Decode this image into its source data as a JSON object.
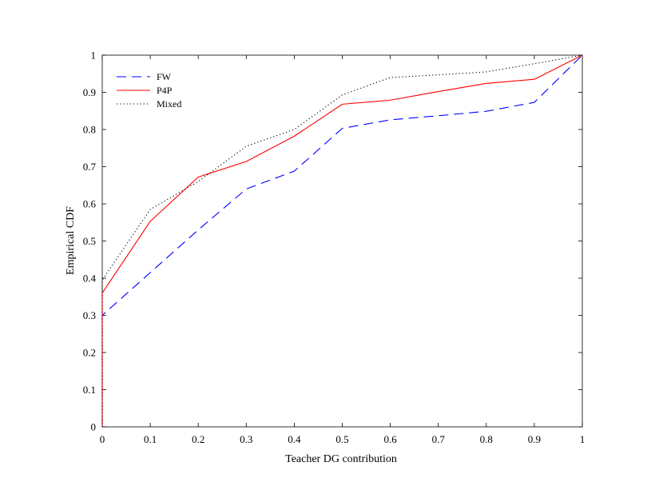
{
  "chart_data": {
    "type": "line",
    "title": "",
    "xlabel": "Teacher DG contribution",
    "ylabel": "Empirical CDF",
    "xlim": [
      0,
      1
    ],
    "ylim": [
      0,
      1
    ],
    "xticks": [
      "0",
      "0.1",
      "0.2",
      "0.3",
      "0.4",
      "0.5",
      "0.6",
      "0.7",
      "0.8",
      "0.9",
      "1"
    ],
    "yticks": [
      "0",
      "0.1",
      "0.2",
      "0.3",
      "0.4",
      "0.5",
      "0.6",
      "0.7",
      "0.8",
      "0.9",
      "1"
    ],
    "grid": false,
    "legend_position": "top-left",
    "series": [
      {
        "name": "FW",
        "style": "dashed",
        "color": "#0000ff",
        "x": [
          0,
          0,
          0.1,
          0.2,
          0.3,
          0.4,
          0.5,
          0.6,
          0.7,
          0.8,
          0.9,
          1
        ],
        "y": [
          0,
          0.3,
          0.415,
          0.53,
          0.64,
          0.688,
          0.803,
          0.826,
          0.837,
          0.849,
          0.873,
          1
        ]
      },
      {
        "name": "P4P",
        "style": "solid",
        "color": "#ff0000",
        "x": [
          0,
          0,
          0.1,
          0.2,
          0.3,
          0.4,
          0.5,
          0.6,
          0.7,
          0.8,
          0.9,
          1
        ],
        "y": [
          0,
          0.36,
          0.553,
          0.672,
          0.714,
          0.782,
          0.868,
          0.879,
          0.902,
          0.924,
          0.935,
          1
        ]
      },
      {
        "name": "Mixed",
        "style": "dotted",
        "color": "#000000",
        "x": [
          0,
          0,
          0.1,
          0.2,
          0.3,
          0.4,
          0.5,
          0.6,
          0.7,
          0.8,
          0.9,
          1
        ],
        "y": [
          0,
          0.395,
          0.585,
          0.66,
          0.755,
          0.8,
          0.893,
          0.94,
          0.947,
          0.955,
          0.977,
          1
        ]
      }
    ]
  }
}
